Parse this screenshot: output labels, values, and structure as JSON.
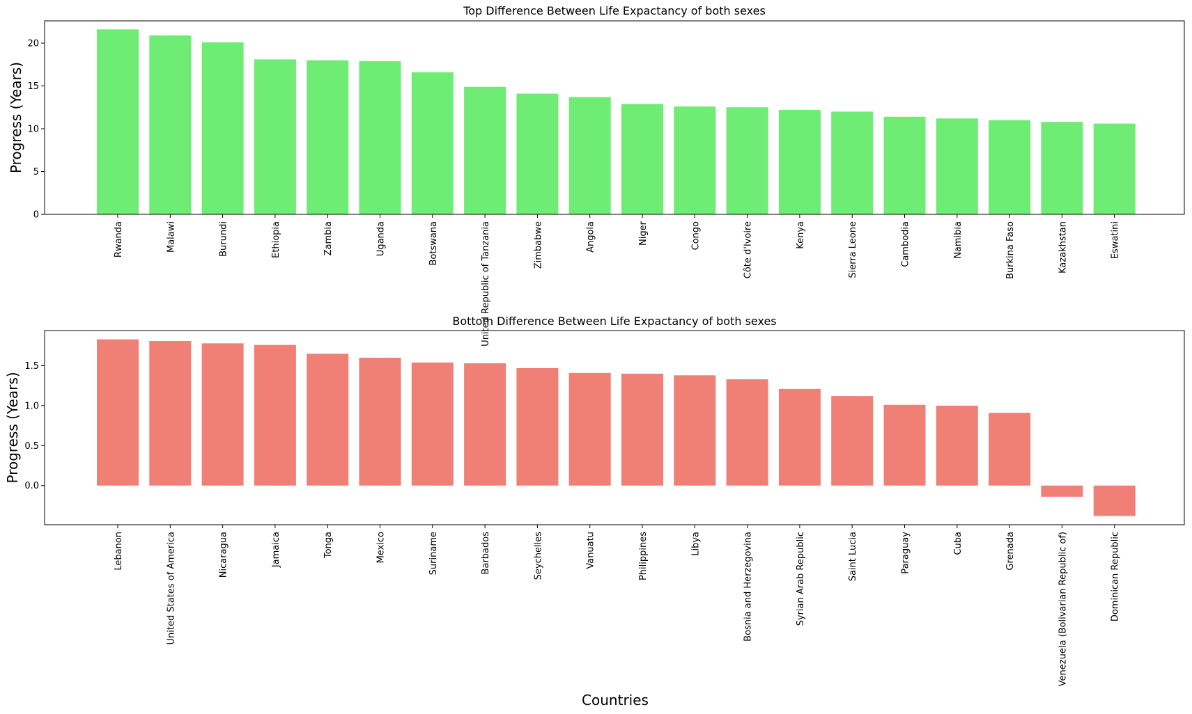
{
  "chart_data": [
    {
      "type": "bar",
      "title": "Top Difference Between Life Expactancy of both sexes",
      "xlabel": "",
      "ylabel": "Progress (Years)",
      "ylim": [
        0,
        22.6
      ],
      "yticks": [
        0,
        5,
        10,
        15,
        20
      ],
      "color": "#6eec73",
      "grid": false,
      "categories": [
        "Rwanda",
        "Malawi",
        "Burundi",
        "Ethiopia",
        "Zambia",
        "Uganda",
        "Botswana",
        "United Republic of Tanzania",
        "Zimbabwe",
        "Angola",
        "Niger",
        "Congo",
        "Côte d'Ivoire",
        "Kenya",
        "Sierra Leone",
        "Cambodia",
        "Namibia",
        "Burkina Faso",
        "Kazakhstan",
        "Eswatini"
      ],
      "values": [
        21.6,
        20.9,
        20.1,
        18.1,
        18.0,
        17.9,
        16.6,
        14.9,
        14.1,
        13.7,
        12.9,
        12.6,
        12.5,
        12.2,
        12.0,
        11.4,
        11.2,
        11.0,
        10.8,
        10.6
      ]
    },
    {
      "type": "bar",
      "title": "Bottom Difference Between Life Expactancy of both sexes",
      "xlabel": "Countries",
      "ylabel": "Progress (Years)",
      "ylim": [
        -0.49,
        1.94
      ],
      "yticks": [
        0.0,
        0.5,
        1.0,
        1.5
      ],
      "color": "#f07f76",
      "grid": false,
      "categories": [
        "Lebanon",
        "United States of America",
        "Nicaragua",
        "Jamaica",
        "Tonga",
        "Mexico",
        "Suriname",
        "Barbados",
        "Seychelles",
        "Vanuatu",
        "Philippines",
        "Libya",
        "Bosnia and Herzegovina",
        "Syrian Arab Republic",
        "Saint Lucia",
        "Paraguay",
        "Cuba",
        "Grenada",
        "Venezuela (Bolivarian Republic of)",
        "Dominican Republic"
      ],
      "values": [
        1.83,
        1.81,
        1.78,
        1.76,
        1.65,
        1.6,
        1.54,
        1.53,
        1.47,
        1.41,
        1.4,
        1.38,
        1.33,
        1.21,
        1.12,
        1.01,
        1.0,
        0.91,
        -0.14,
        -0.38
      ]
    }
  ]
}
